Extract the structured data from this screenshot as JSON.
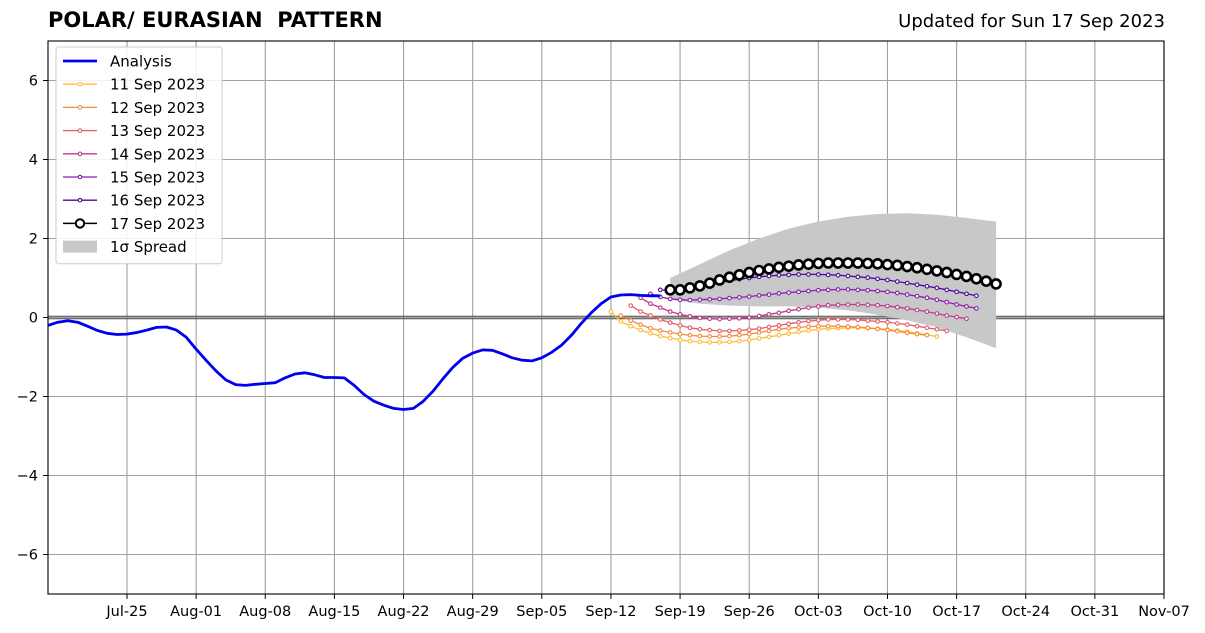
{
  "chart_data": {
    "type": "line",
    "title": "POLAR/ EURASIAN  PATTERN",
    "subtitle": "Updated for Sun 17 Sep 2023",
    "xlabel": "",
    "ylabel": "",
    "x_range": [
      "2023-07-17",
      "2023-11-07"
    ],
    "ylim": [
      -7,
      7
    ],
    "x_ticks": [
      {
        "date": "2023-07-25",
        "label": "Jul-25"
      },
      {
        "date": "2023-08-01",
        "label": "Aug-01"
      },
      {
        "date": "2023-08-08",
        "label": "Aug-08"
      },
      {
        "date": "2023-08-15",
        "label": "Aug-15"
      },
      {
        "date": "2023-08-22",
        "label": "Aug-22"
      },
      {
        "date": "2023-08-29",
        "label": "Aug-29"
      },
      {
        "date": "2023-09-05",
        "label": "Sep-05"
      },
      {
        "date": "2023-09-12",
        "label": "Sep-12"
      },
      {
        "date": "2023-09-19",
        "label": "Sep-19"
      },
      {
        "date": "2023-09-26",
        "label": "Sep-26"
      },
      {
        "date": "2023-10-03",
        "label": "Oct-03"
      },
      {
        "date": "2023-10-10",
        "label": "Oct-10"
      },
      {
        "date": "2023-10-17",
        "label": "Oct-17"
      },
      {
        "date": "2023-10-24",
        "label": "Oct-24"
      },
      {
        "date": "2023-10-31",
        "label": "Oct-31"
      },
      {
        "date": "2023-11-07",
        "label": "Nov-07"
      }
    ],
    "y_ticks": [
      {
        "value": -6,
        "label": "−6"
      },
      {
        "value": -4,
        "label": "−4"
      },
      {
        "value": -2,
        "label": "−2"
      },
      {
        "value": 0,
        "label": "0"
      },
      {
        "value": 2,
        "label": "2"
      },
      {
        "value": 4,
        "label": "4"
      },
      {
        "value": 6,
        "label": "6"
      }
    ],
    "grid": true,
    "legend_position": "top-left",
    "analysis": {
      "name": "Analysis",
      "color": "#0000ee",
      "x": [
        "2023-07-17",
        "2023-07-18",
        "2023-07-19",
        "2023-07-20",
        "2023-07-21",
        "2023-07-22",
        "2023-07-23",
        "2023-07-24",
        "2023-07-25",
        "2023-07-26",
        "2023-07-27",
        "2023-07-28",
        "2023-07-29",
        "2023-07-30",
        "2023-07-31",
        "2023-08-01",
        "2023-08-02",
        "2023-08-03",
        "2023-08-04",
        "2023-08-05",
        "2023-08-06",
        "2023-08-07",
        "2023-08-08",
        "2023-08-09",
        "2023-08-10",
        "2023-08-11",
        "2023-08-12",
        "2023-08-13",
        "2023-08-14",
        "2023-08-15",
        "2023-08-16",
        "2023-08-17",
        "2023-08-18",
        "2023-08-19",
        "2023-08-20",
        "2023-08-21",
        "2023-08-22",
        "2023-08-23",
        "2023-08-24",
        "2023-08-25",
        "2023-08-26",
        "2023-08-27",
        "2023-08-28",
        "2023-08-29",
        "2023-08-30",
        "2023-08-31",
        "2023-09-01",
        "2023-09-02",
        "2023-09-03",
        "2023-09-04",
        "2023-09-05",
        "2023-09-06",
        "2023-09-07",
        "2023-09-08",
        "2023-09-09",
        "2023-09-10",
        "2023-09-11",
        "2023-09-12",
        "2023-09-13",
        "2023-09-14",
        "2023-09-15",
        "2023-09-16",
        "2023-09-17"
      ],
      "values": [
        -0.2,
        -0.12,
        -0.08,
        -0.12,
        -0.22,
        -0.33,
        -0.4,
        -0.43,
        -0.42,
        -0.38,
        -0.32,
        -0.25,
        -0.24,
        -0.32,
        -0.5,
        -0.8,
        -1.08,
        -1.35,
        -1.58,
        -1.7,
        -1.72,
        -1.69,
        -1.67,
        -1.65,
        -1.53,
        -1.43,
        -1.4,
        -1.45,
        -1.52,
        -1.52,
        -1.53,
        -1.72,
        -1.95,
        -2.12,
        -2.22,
        -2.3,
        -2.33,
        -2.3,
        -2.12,
        -1.86,
        -1.55,
        -1.26,
        -1.03,
        -0.9,
        -0.82,
        -0.83,
        -0.92,
        -1.02,
        -1.08,
        -1.1,
        -1.02,
        -0.88,
        -0.7,
        -0.45,
        -0.15,
        0.12,
        0.35,
        0.52,
        0.57,
        0.58,
        0.56,
        0.55,
        0.55
      ]
    },
    "forecasts": [
      {
        "name": "11 Sep 2023",
        "color": "#fdbd3c",
        "start": "2023-09-12",
        "values": [
          0.15,
          -0.1,
          -0.22,
          -0.32,
          -0.4,
          -0.47,
          -0.52,
          -0.57,
          -0.6,
          -0.62,
          -0.63,
          -0.63,
          -0.62,
          -0.6,
          -0.57,
          -0.53,
          -0.49,
          -0.45,
          -0.41,
          -0.37,
          -0.33,
          -0.3,
          -0.28,
          -0.27,
          -0.26,
          -0.26,
          -0.27,
          -0.28,
          -0.3,
          -0.33,
          -0.36,
          -0.4,
          -0.44,
          -0.48
        ]
      },
      {
        "name": "12 Sep 2023",
        "color": "#f68c3c",
        "start": "2023-09-13",
        "values": [
          0.05,
          -0.08,
          -0.18,
          -0.27,
          -0.33,
          -0.38,
          -0.42,
          -0.45,
          -0.47,
          -0.48,
          -0.48,
          -0.47,
          -0.45,
          -0.42,
          -0.38,
          -0.34,
          -0.3,
          -0.27,
          -0.25,
          -0.23,
          -0.22,
          -0.22,
          -0.22,
          -0.23,
          -0.24,
          -0.26,
          -0.29,
          -0.32,
          -0.35,
          -0.39,
          -0.42,
          -0.45
        ]
      },
      {
        "name": "13 Sep 2023",
        "color": "#e2606b",
        "start": "2023-09-14",
        "values": [
          0.3,
          0.15,
          0.05,
          -0.05,
          -0.13,
          -0.2,
          -0.26,
          -0.3,
          -0.32,
          -0.34,
          -0.34,
          -0.33,
          -0.31,
          -0.28,
          -0.24,
          -0.2,
          -0.16,
          -0.12,
          -0.09,
          -0.07,
          -0.05,
          -0.05,
          -0.05,
          -0.06,
          -0.08,
          -0.1,
          -0.12,
          -0.15,
          -0.18,
          -0.22,
          -0.26,
          -0.3,
          -0.34
        ]
      },
      {
        "name": "14 Sep 2023",
        "color": "#bd3a8a",
        "start": "2023-09-15",
        "values": [
          0.5,
          0.35,
          0.25,
          0.15,
          0.08,
          0.03,
          -0.01,
          -0.03,
          -0.04,
          -0.03,
          -0.02,
          0.0,
          0.04,
          0.08,
          0.12,
          0.17,
          0.21,
          0.25,
          0.28,
          0.31,
          0.32,
          0.33,
          0.33,
          0.32,
          0.31,
          0.29,
          0.26,
          0.23,
          0.19,
          0.15,
          0.1,
          0.05,
          0.01,
          -0.03
        ]
      },
      {
        "name": "15 Sep 2023",
        "color": "#8a1fad",
        "start": "2023-09-16",
        "values": [
          0.6,
          0.52,
          0.47,
          0.45,
          0.44,
          0.45,
          0.46,
          0.47,
          0.49,
          0.51,
          0.53,
          0.56,
          0.58,
          0.61,
          0.63,
          0.65,
          0.67,
          0.69,
          0.7,
          0.71,
          0.71,
          0.7,
          0.69,
          0.67,
          0.65,
          0.62,
          0.58,
          0.54,
          0.5,
          0.45,
          0.39,
          0.33,
          0.28,
          0.23
        ]
      },
      {
        "name": "16 Sep 2023",
        "color": "#4c0a9a",
        "start": "2023-09-17",
        "values": [
          0.7,
          0.68,
          0.68,
          0.72,
          0.77,
          0.83,
          0.88,
          0.93,
          0.97,
          1.0,
          1.03,
          1.05,
          1.07,
          1.08,
          1.09,
          1.09,
          1.09,
          1.08,
          1.07,
          1.05,
          1.03,
          1.01,
          0.98,
          0.95,
          0.91,
          0.87,
          0.83,
          0.79,
          0.75,
          0.7,
          0.65,
          0.6,
          0.55
        ]
      },
      {
        "name": "17 Sep 2023",
        "color": "#000000",
        "start": "2023-09-18",
        "values": [
          0.7,
          0.7,
          0.75,
          0.8,
          0.87,
          0.95,
          1.02,
          1.08,
          1.14,
          1.19,
          1.23,
          1.27,
          1.3,
          1.33,
          1.35,
          1.37,
          1.38,
          1.38,
          1.38,
          1.38,
          1.37,
          1.36,
          1.34,
          1.32,
          1.29,
          1.26,
          1.22,
          1.18,
          1.14,
          1.09,
          1.04,
          0.98,
          0.92,
          0.85
        ]
      }
    ],
    "spread": {
      "name": "1σ Spread",
      "color": "#c8c8c8",
      "x": [
        "2023-09-18",
        "2023-09-21",
        "2023-09-24",
        "2023-09-27",
        "2023-09-30",
        "2023-10-03",
        "2023-10-06",
        "2023-10-09",
        "2023-10-12",
        "2023-10-15",
        "2023-10-18",
        "2023-10-21"
      ],
      "upper": [
        1.0,
        1.35,
        1.7,
        2.0,
        2.25,
        2.43,
        2.55,
        2.62,
        2.64,
        2.6,
        2.52,
        2.43
      ],
      "lower": [
        0.45,
        0.35,
        0.3,
        0.28,
        0.28,
        0.25,
        0.18,
        0.07,
        -0.07,
        -0.25,
        -0.5,
        -0.78
      ]
    }
  }
}
